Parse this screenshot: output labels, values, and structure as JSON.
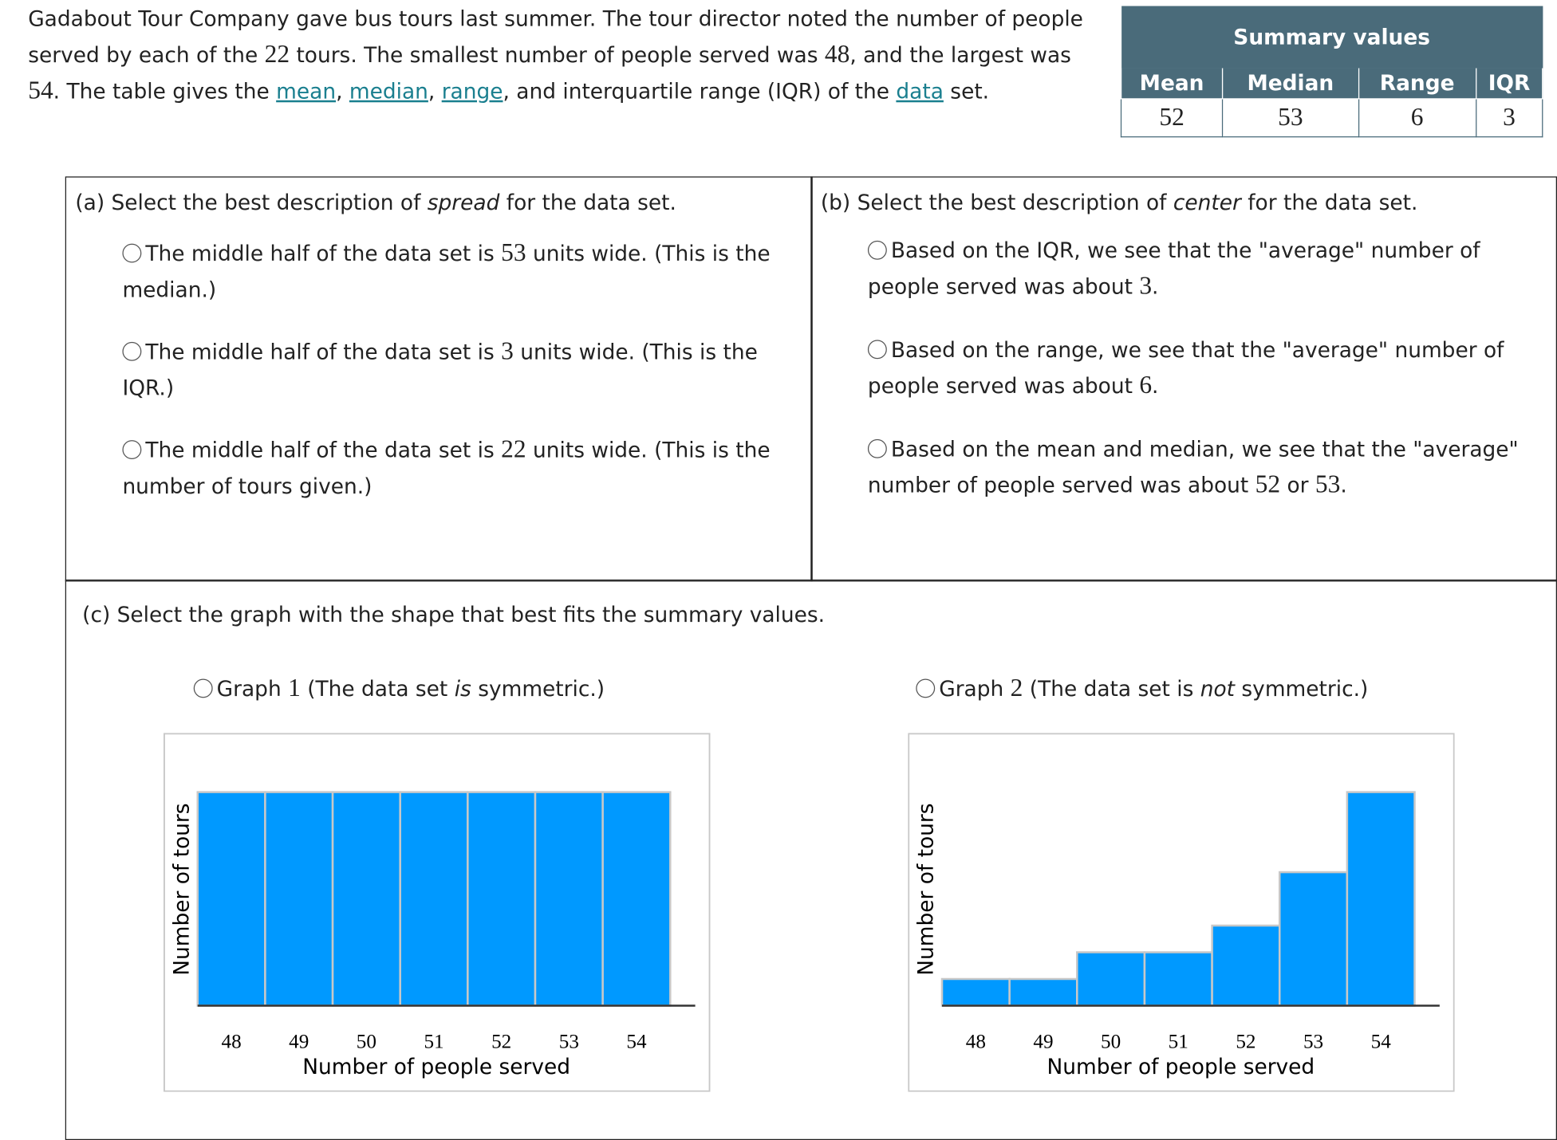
{
  "intro": [
    "Gadabout Tour Company gave bus tours last summer. The tour director noted the number of people served by each of the ",
    22,
    " tours. The smallest number of people served was ",
    48,
    ", and the largest was ",
    54,
    ". The table gives the ",
    {
      "link": "mean"
    },
    ", ",
    {
      "link": "median"
    },
    ", ",
    {
      "link": "range"
    },
    ", and interquartile range (IQR) of the ",
    {
      "link": "data"
    },
    " set."
  ],
  "summary": {
    "title": "Summary values",
    "columns": [
      "Mean",
      "Median",
      "Range",
      "IQR"
    ],
    "values": [
      52,
      53,
      6,
      3
    ]
  },
  "part_a": {
    "prompt": [
      "(a)  Select the best description of ",
      {
        "em": "spread"
      },
      " for the data set."
    ],
    "options": [
      [
        "The middle half of the data set is ",
        53,
        " units wide. (This is the median.)"
      ],
      [
        "The middle half of the data set is ",
        3,
        " units wide. (This is the IQR.)"
      ],
      [
        "The middle half of the data set is ",
        22,
        " units wide. (This is the number of tours given.)"
      ]
    ]
  },
  "part_b": {
    "prompt": [
      "(b)  Select the best description of ",
      {
        "em": "center"
      },
      " for the data set."
    ],
    "options": [
      [
        "Based on the IQR, we see that the \"average\" number of people served was about ",
        3,
        "."
      ],
      [
        "Based on the range, we see that the \"average\" number of people served was about ",
        6,
        "."
      ],
      [
        "Based on the mean and median, we see that the \"average\" number of people served was about ",
        52,
        " or ",
        53,
        "."
      ]
    ]
  },
  "part_c": {
    "prompt": [
      "(c)  Select the graph with the shape that best fits the summary values."
    ],
    "graphs": [
      {
        "label": [
          "Graph ",
          1,
          " (The data set ",
          {
            "em": "is"
          },
          " symmetric.)"
        ],
        "chart_data": {
          "type": "histogram",
          "bins": [
            47.5,
            48.5,
            49.5,
            50.5,
            51.5,
            52.5,
            53.5,
            54.5
          ],
          "values": [
            8,
            8,
            8,
            8,
            8,
            8,
            8
          ],
          "color": "#0099ff",
          "xlim": [
            47.5,
            54.87
          ],
          "xticks": [
            48,
            49,
            50,
            51,
            52,
            53,
            54
          ],
          "ylim": [
            0,
            8
          ],
          "xlabel": "Number of people served",
          "ylabel": "Number of tours"
        }
      },
      {
        "label": [
          "Graph ",
          2,
          " (The data set is ",
          {
            "em": "not"
          },
          " symmetric.)"
        ],
        "chart_data": {
          "type": "histogram",
          "bins": [
            47.5,
            48.5,
            49.5,
            50.5,
            51.5,
            52.5,
            53.5,
            54.5
          ],
          "values": [
            1,
            1,
            2,
            2,
            3,
            5,
            8
          ],
          "color": "#0099ff",
          "xlim": [
            47.5,
            54.87
          ],
          "xticks": [
            48,
            49,
            50,
            51,
            52,
            53,
            54
          ],
          "ylim": [
            0,
            8
          ],
          "xlabel": "Number of people served",
          "ylabel": "Number of tours"
        }
      }
    ]
  }
}
